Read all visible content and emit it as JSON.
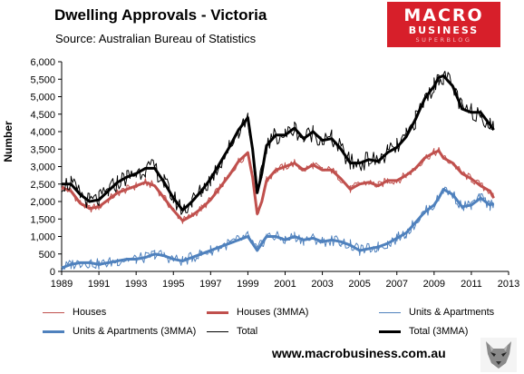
{
  "logo": {
    "line1": "MACRO",
    "line2": "BUSINESS",
    "line3": "SUPERBLOG"
  },
  "footer": {
    "url": "www.macrobusiness.com.au"
  },
  "chart_data": {
    "type": "line",
    "title": "Dwelling Approvals - Victoria",
    "subtitle": "Source: Australian Bureau of Statistics",
    "ylabel": "Number",
    "xlabel": "",
    "xlim": [
      1989,
      2013
    ],
    "ylim": [
      0,
      6000
    ],
    "x_ticks": [
      1989,
      1991,
      1993,
      1995,
      1997,
      1999,
      2001,
      2003,
      2005,
      2007,
      2009,
      2011,
      2013
    ],
    "y_ticks": [
      0,
      500,
      1000,
      1500,
      2000,
      2500,
      3000,
      3500,
      4000,
      4500,
      5000,
      5500,
      6000
    ],
    "y_tick_labels": [
      "0",
      "500",
      "1,000",
      "1,500",
      "2,000",
      "2,500",
      "3,000",
      "3,500",
      "4,000",
      "4,500",
      "5,000",
      "5,500",
      "6,000"
    ],
    "grid": false,
    "legend_position": "bottom",
    "x": [
      1989.0,
      1989.5,
      1990.0,
      1990.5,
      1991.0,
      1991.5,
      1992.0,
      1992.5,
      1993.0,
      1993.5,
      1994.0,
      1994.5,
      1995.0,
      1995.5,
      1996.0,
      1996.5,
      1997.0,
      1997.5,
      1998.0,
      1998.5,
      1999.0,
      1999.25,
      1999.5,
      1999.75,
      2000.0,
      2000.5,
      2001.0,
      2001.5,
      2002.0,
      2002.5,
      2003.0,
      2003.5,
      2004.0,
      2004.5,
      2005.0,
      2005.5,
      2006.0,
      2006.5,
      2007.0,
      2007.5,
      2008.0,
      2008.5,
      2009.0,
      2009.25,
      2009.5,
      2010.0,
      2010.5,
      2011.0,
      2011.5,
      2012.0,
      2012.2
    ],
    "series": [
      {
        "name": "Houses",
        "color": "#c0504d",
        "width": 1,
        "values": [
          2400,
          2300,
          1950,
          1800,
          1850,
          2050,
          2250,
          2350,
          2450,
          2550,
          2450,
          2100,
          1750,
          1450,
          1600,
          1800,
          2050,
          2400,
          2750,
          3150,
          3400,
          2700,
          1650,
          2000,
          2600,
          2900,
          3000,
          3100,
          2900,
          3050,
          2900,
          2900,
          2650,
          2350,
          2500,
          2550,
          2450,
          2600,
          2600,
          2750,
          2950,
          3250,
          3400,
          3450,
          3250,
          3100,
          2800,
          2650,
          2450,
          2300,
          2100
        ]
      },
      {
        "name": "Houses (3MMA)",
        "color": "#c0504d",
        "width": 3,
        "values": [
          2400,
          2300,
          1950,
          1800,
          1850,
          2050,
          2250,
          2350,
          2450,
          2550,
          2450,
          2100,
          1750,
          1450,
          1600,
          1800,
          2050,
          2400,
          2750,
          3150,
          3400,
          2700,
          1650,
          2000,
          2600,
          2900,
          3000,
          3100,
          2900,
          3050,
          2900,
          2900,
          2650,
          2350,
          2500,
          2550,
          2450,
          2600,
          2600,
          2750,
          2950,
          3250,
          3400,
          3450,
          3250,
          3100,
          2800,
          2650,
          2450,
          2300,
          2100
        ]
      },
      {
        "name": "Units & Apartments",
        "color": "#4f81bd",
        "width": 1,
        "values": [
          100,
          200,
          250,
          250,
          200,
          250,
          300,
          350,
          350,
          400,
          500,
          450,
          350,
          300,
          400,
          500,
          600,
          700,
          800,
          900,
          1000,
          800,
          600,
          800,
          1000,
          1000,
          900,
          1000,
          900,
          950,
          850,
          900,
          850,
          750,
          600,
          650,
          700,
          800,
          950,
          1100,
          1400,
          1700,
          1900,
          2100,
          2350,
          2200,
          1850,
          1900,
          2100,
          1900,
          1950
        ]
      },
      {
        "name": "Units & Apartments (3MMA)",
        "color": "#4f81bd",
        "width": 3,
        "values": [
          100,
          200,
          250,
          250,
          200,
          250,
          300,
          350,
          350,
          400,
          500,
          450,
          350,
          300,
          400,
          500,
          600,
          700,
          800,
          900,
          1000,
          800,
          600,
          800,
          1000,
          1000,
          900,
          1000,
          900,
          950,
          850,
          900,
          850,
          750,
          600,
          650,
          700,
          800,
          950,
          1100,
          1400,
          1700,
          1900,
          2100,
          2350,
          2200,
          1850,
          1900,
          2100,
          1900,
          1950
        ]
      },
      {
        "name": "Total",
        "color": "#000000",
        "width": 1,
        "values": [
          2500,
          2500,
          2200,
          2000,
          2050,
          2300,
          2550,
          2700,
          2800,
          2950,
          2950,
          2550,
          2100,
          1750,
          2000,
          2300,
          2650,
          3100,
          3550,
          4050,
          4400,
          3500,
          2250,
          2800,
          3600,
          3900,
          3900,
          4100,
          3800,
          4000,
          3750,
          3800,
          3500,
          3100,
          3100,
          3200,
          3150,
          3400,
          3550,
          3850,
          4350,
          4950,
          5300,
          5550,
          5600,
          5300,
          4650,
          4550,
          4550,
          4200,
          4050
        ]
      },
      {
        "name": "Total (3MMA)",
        "color": "#000000",
        "width": 3,
        "values": [
          2500,
          2500,
          2200,
          2000,
          2050,
          2300,
          2550,
          2700,
          2800,
          2950,
          2950,
          2550,
          2100,
          1750,
          2000,
          2300,
          2650,
          3100,
          3550,
          4050,
          4400,
          3500,
          2250,
          2800,
          3600,
          3900,
          3900,
          4100,
          3800,
          4000,
          3750,
          3800,
          3500,
          3100,
          3100,
          3200,
          3150,
          3400,
          3550,
          3850,
          4350,
          4950,
          5300,
          5550,
          5600,
          5300,
          4650,
          4550,
          4550,
          4200,
          4050
        ]
      }
    ]
  }
}
